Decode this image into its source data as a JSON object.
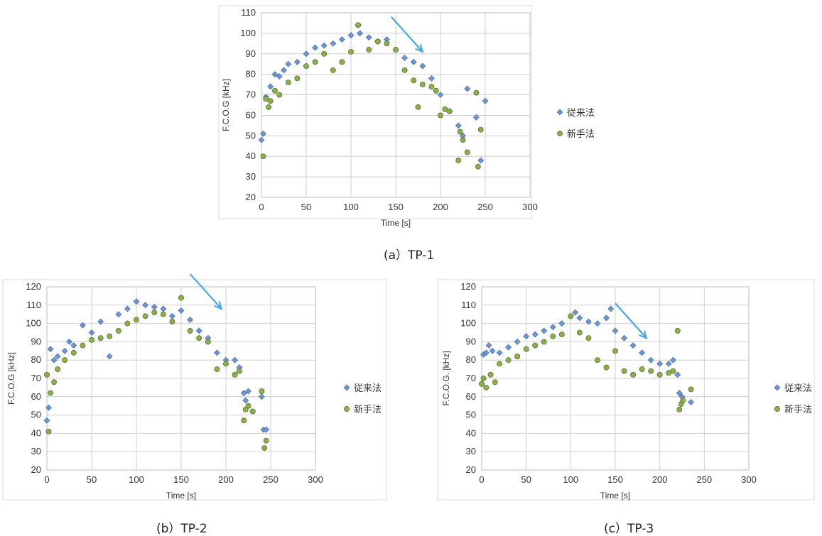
{
  "colors": {
    "blue_marker": "#6f95cf",
    "blue_marker_stroke": "#40659f",
    "green_marker": "#8cae4f",
    "green_marker_stroke": "#4d6b24",
    "arrow": "#4aa8dc",
    "grid": "#cfcfcf"
  },
  "chart_data": [
    {
      "type": "scatter",
      "caption": "(a）TP-1",
      "xlabel": "Time [s]",
      "ylabel": "F.C.O.G [kHz]",
      "xlim": [
        0,
        300
      ],
      "ylim": [
        20,
        110
      ],
      "xticks": [
        "0",
        "50",
        "100",
        "150",
        "200",
        "250",
        "300"
      ],
      "yticks": [
        "20",
        "30",
        "40",
        "50",
        "60",
        "70",
        "80",
        "90",
        "100",
        "110"
      ],
      "grid": true,
      "legend_position": "right",
      "annotation": "arrow pointing down-right, from (145, 108) to (180, 91)",
      "series": [
        {
          "name": "従来法",
          "marker": "diamond",
          "x": [
            0,
            2,
            5,
            10,
            15,
            20,
            25,
            30,
            40,
            50,
            60,
            70,
            80,
            90,
            100,
            110,
            120,
            130,
            140,
            150,
            160,
            170,
            180,
            190,
            200,
            210,
            220,
            225,
            230,
            240,
            245,
            250
          ],
          "y": [
            48,
            51,
            69,
            74,
            80,
            79,
            82,
            85,
            86,
            90,
            93,
            94,
            95,
            97,
            99,
            100,
            98,
            96,
            97,
            92,
            88,
            86,
            84,
            78,
            70,
            62,
            55,
            50,
            73,
            59,
            38,
            67
          ]
        },
        {
          "name": "新手法",
          "marker": "circle",
          "x": [
            2,
            5,
            8,
            10,
            15,
            20,
            30,
            40,
            50,
            60,
            70,
            80,
            90,
            100,
            108,
            120,
            130,
            140,
            150,
            160,
            170,
            175,
            180,
            190,
            195,
            200,
            205,
            210,
            220,
            222,
            225,
            230,
            240,
            242,
            245
          ],
          "y": [
            40,
            68,
            64,
            67,
            72,
            70,
            76,
            78,
            84,
            86,
            90,
            82,
            86,
            91,
            104,
            92,
            96,
            95,
            92,
            82,
            77,
            64,
            75,
            74,
            72,
            60,
            63,
            62,
            38,
            52,
            48,
            42,
            71,
            35,
            53
          ]
        }
      ]
    },
    {
      "type": "scatter",
      "caption": "(b）TP-2",
      "xlabel": "Time [s]",
      "ylabel": "F.C.O.G [kHz]",
      "xlim": [
        0,
        300
      ],
      "ylim": [
        20,
        120
      ],
      "xticks": [
        "0",
        "50",
        "100",
        "150",
        "200",
        "250",
        "300"
      ],
      "yticks": [
        "20",
        "30",
        "40",
        "50",
        "60",
        "70",
        "80",
        "90",
        "100",
        "110",
        "120"
      ],
      "grid": true,
      "legend_position": "right",
      "annotation": "arrow pointing down-right, from (160, 127) to (195, 108)",
      "series": [
        {
          "name": "従来法",
          "marker": "diamond",
          "x": [
            0,
            2,
            4,
            8,
            12,
            20,
            25,
            30,
            40,
            50,
            60,
            70,
            80,
            90,
            100,
            110,
            120,
            130,
            140,
            150,
            160,
            170,
            180,
            190,
            200,
            210,
            215,
            220,
            222,
            225,
            240,
            242,
            245
          ],
          "y": [
            47,
            54,
            86,
            80,
            82,
            85,
            90,
            88,
            99,
            95,
            101,
            82,
            105,
            108,
            112,
            110,
            109,
            108,
            104,
            107,
            102,
            96,
            92,
            84,
            80,
            80,
            76,
            62,
            58,
            63,
            60,
            42,
            42
          ]
        },
        {
          "name": "新手法",
          "marker": "circle",
          "x": [
            0,
            2,
            4,
            8,
            12,
            20,
            30,
            40,
            50,
            60,
            70,
            80,
            90,
            100,
            110,
            120,
            130,
            140,
            150,
            160,
            170,
            180,
            190,
            200,
            210,
            215,
            220,
            222,
            225,
            230,
            240,
            243,
            245
          ],
          "y": [
            72,
            41,
            62,
            68,
            75,
            80,
            84,
            88,
            91,
            92,
            93,
            96,
            100,
            102,
            104,
            106,
            105,
            101,
            114,
            96,
            92,
            90,
            75,
            78,
            72,
            74,
            47,
            53,
            55,
            52,
            63,
            32,
            36
          ]
        }
      ]
    },
    {
      "type": "scatter",
      "caption": "(c）TP-3",
      "xlabel": "Time [s]",
      "ylabel": "F.C.O.G. [kHz]",
      "xlim": [
        0,
        300
      ],
      "ylim": [
        20,
        120
      ],
      "xticks": [
        "0",
        "50",
        "100",
        "150",
        "200",
        "250",
        "300"
      ],
      "yticks": [
        "20",
        "30",
        "40",
        "50",
        "60",
        "70",
        "80",
        "90",
        "100",
        "110",
        "120"
      ],
      "grid": true,
      "legend_position": "right",
      "annotation": "arrow pointing down-right, from (150, 111) to (185, 92)",
      "series": [
        {
          "name": "従来法",
          "marker": "diamond",
          "x": [
            0,
            2,
            5,
            8,
            12,
            20,
            30,
            40,
            50,
            60,
            70,
            80,
            90,
            100,
            105,
            110,
            120,
            130,
            140,
            145,
            150,
            160,
            170,
            180,
            190,
            200,
            210,
            215,
            220,
            222,
            225,
            235
          ],
          "y": [
            67,
            83,
            84,
            88,
            85,
            84,
            87,
            90,
            93,
            94,
            96,
            98,
            100,
            104,
            106,
            103,
            101,
            100,
            103,
            108,
            96,
            92,
            88,
            84,
            80,
            78,
            78,
            80,
            72,
            62,
            60,
            57
          ]
        },
        {
          "name": "新手法",
          "marker": "circle",
          "x": [
            0,
            2,
            5,
            10,
            15,
            20,
            30,
            40,
            50,
            60,
            70,
            80,
            90,
            100,
            110,
            120,
            130,
            140,
            150,
            160,
            170,
            180,
            190,
            200,
            210,
            215,
            220,
            222,
            224,
            226,
            235
          ],
          "y": [
            67,
            70,
            65,
            72,
            68,
            78,
            80,
            82,
            86,
            88,
            90,
            93,
            94,
            104,
            95,
            92,
            80,
            76,
            85,
            74,
            72,
            75,
            74,
            72,
            73,
            74,
            96,
            53,
            56,
            58,
            64
          ]
        }
      ]
    }
  ]
}
